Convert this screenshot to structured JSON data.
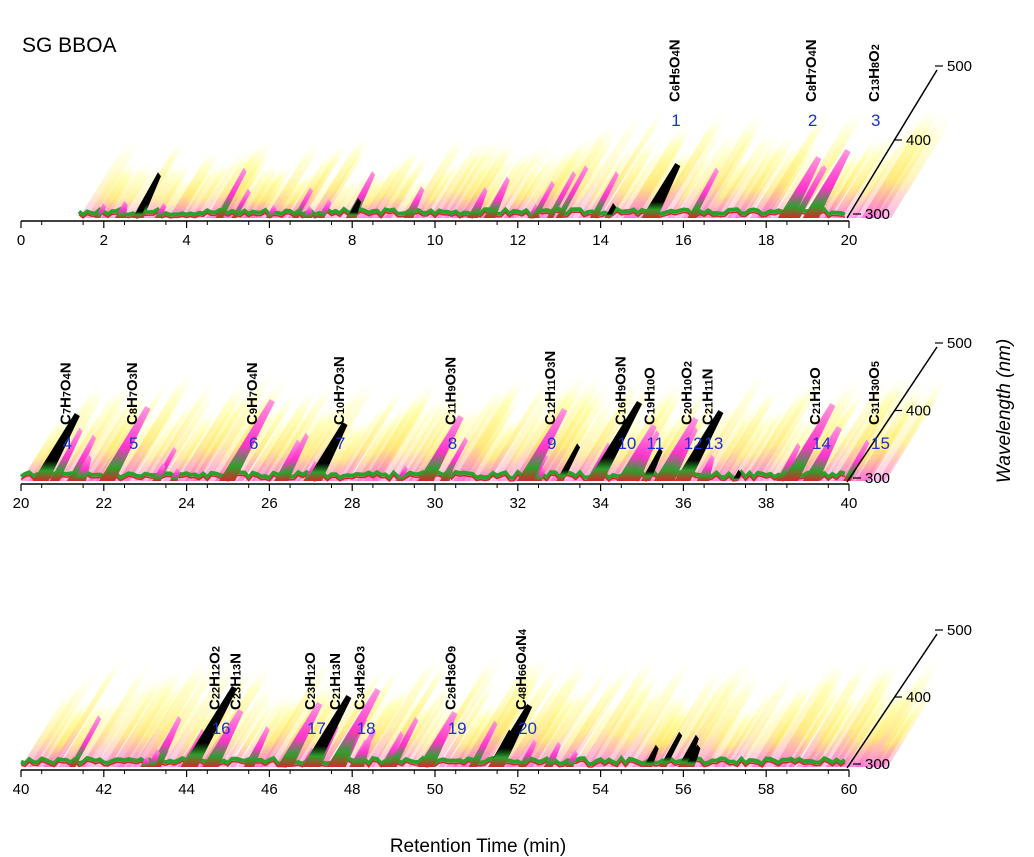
{
  "chart_data": {
    "type": "area",
    "title": "SG BBOA",
    "xlabel": "Retention Time (min)",
    "ylabel": "Wavelength (nm)",
    "colors": {
      "low": "#ffff33",
      "mid": "#ff33cc",
      "high": "#2ca02c",
      "higher": "#d62728",
      "max": "#000000",
      "peak_label": "#1a2fd6"
    },
    "panels": [
      {
        "xlim": [
          0,
          20
        ],
        "xticks": [
          "0",
          "2",
          "4",
          "6",
          "8",
          "10",
          "12",
          "14",
          "16",
          "18",
          "20"
        ],
        "ylim": [
          300,
          500
        ],
        "yticks": [
          "300",
          "400",
          "500"
        ],
        "peaks": [
          {
            "num": "1",
            "t": 15.9,
            "formula": "C6H5O4N",
            "parts": [
              [
                "C",
                ""
              ],
              [
                "6",
                "s"
              ],
              [
                "H",
                ""
              ],
              [
                "5",
                "s"
              ],
              [
                "O",
                ""
              ],
              [
                "4",
                "s"
              ],
              [
                "N",
                ""
              ]
            ]
          },
          {
            "num": "2",
            "t": 19.2,
            "formula": "C8H7O4N",
            "parts": [
              [
                "C",
                ""
              ],
              [
                "8",
                "s"
              ],
              [
                "H",
                ""
              ],
              [
                "7",
                "s"
              ],
              [
                "O",
                ""
              ],
              [
                "4",
                "s"
              ],
              [
                "N",
                ""
              ]
            ]
          },
          {
            "num": "3",
            "t": 20.6,
            "formula": "C13H8O2",
            "parts": [
              [
                "C",
                ""
              ],
              [
                "13",
                "s"
              ],
              [
                "H",
                ""
              ],
              [
                "8",
                "s"
              ],
              [
                "O",
                ""
              ],
              [
                "2",
                "s"
              ]
            ]
          }
        ]
      },
      {
        "xlim": [
          20,
          40
        ],
        "xticks": [
          "20",
          "22",
          "24",
          "26",
          "28",
          "30",
          "32",
          "34",
          "36",
          "38",
          "40"
        ],
        "ylim": [
          300,
          500
        ],
        "yticks": [
          "300",
          "400",
          "500"
        ],
        "peaks": [
          {
            "num": "4",
            "t": 21.2,
            "formula": "C7H7O4N",
            "parts": [
              [
                "C",
                ""
              ],
              [
                "7",
                "s"
              ],
              [
                "H",
                ""
              ],
              [
                "7",
                "s"
              ],
              [
                "O",
                ""
              ],
              [
                "4",
                "s"
              ],
              [
                "N",
                ""
              ]
            ]
          },
          {
            "num": "5",
            "t": 22.8,
            "formula": "C8H7O3N",
            "parts": [
              [
                "C",
                ""
              ],
              [
                "8",
                "s"
              ],
              [
                "H",
                ""
              ],
              [
                "7",
                "s"
              ],
              [
                "O",
                ""
              ],
              [
                "3",
                "s"
              ],
              [
                "N",
                ""
              ]
            ]
          },
          {
            "num": "6",
            "t": 25.7,
            "formula": "C9H7O4N",
            "parts": [
              [
                "C",
                ""
              ],
              [
                "9",
                "s"
              ],
              [
                "H",
                ""
              ],
              [
                "7",
                "s"
              ],
              [
                "O",
                ""
              ],
              [
                "4",
                "s"
              ],
              [
                "N",
                ""
              ]
            ]
          },
          {
            "num": "7",
            "t": 27.8,
            "formula": "C10H7O3N",
            "parts": [
              [
                "C",
                ""
              ],
              [
                "10",
                "s"
              ],
              [
                "H",
                ""
              ],
              [
                "7",
                "s"
              ],
              [
                "O",
                ""
              ],
              [
                "3",
                "s"
              ],
              [
                "N",
                ""
              ]
            ]
          },
          {
            "num": "8",
            "t": 30.5,
            "formula": "C11H9O3N",
            "parts": [
              [
                "C",
                ""
              ],
              [
                "11",
                "s"
              ],
              [
                "H",
                ""
              ],
              [
                "9",
                "s"
              ],
              [
                "O",
                ""
              ],
              [
                "3",
                "s"
              ],
              [
                "N",
                ""
              ]
            ]
          },
          {
            "num": "9",
            "t": 32.9,
            "formula": "C12H11O3N",
            "parts": [
              [
                "C",
                ""
              ],
              [
                "12",
                "s"
              ],
              [
                "H",
                ""
              ],
              [
                "11",
                "s"
              ],
              [
                "O",
                ""
              ],
              [
                "3",
                "s"
              ],
              [
                "N",
                ""
              ]
            ]
          },
          {
            "num": "10",
            "t": 34.6,
            "formula": "C16H9O3N",
            "parts": [
              [
                "C",
                ""
              ],
              [
                "16",
                "s"
              ],
              [
                "H",
                ""
              ],
              [
                "9",
                "s"
              ],
              [
                "O",
                ""
              ],
              [
                "3",
                "s"
              ],
              [
                "N",
                ""
              ]
            ]
          },
          {
            "num": "11",
            "t": 35.3,
            "formula": "C19H10O",
            "parts": [
              [
                "C",
                ""
              ],
              [
                "19",
                "s"
              ],
              [
                "H",
                ""
              ],
              [
                "10",
                "s"
              ],
              [
                "O",
                ""
              ]
            ]
          },
          {
            "num": "12",
            "t": 36.2,
            "formula": "C20H10O2",
            "parts": [
              [
                "C",
                ""
              ],
              [
                "20",
                "s"
              ],
              [
                "H",
                ""
              ],
              [
                "10",
                "s"
              ],
              [
                "O",
                ""
              ],
              [
                "2",
                "s"
              ]
            ]
          },
          {
            "num": "13",
            "t": 36.7,
            "formula": "C21H11N",
            "parts": [
              [
                "C",
                ""
              ],
              [
                "21",
                "s"
              ],
              [
                "H",
                ""
              ],
              [
                "11",
                "s"
              ],
              [
                "N",
                ""
              ]
            ]
          },
          {
            "num": "14",
            "t": 39.3,
            "formula": "C21H12O",
            "parts": [
              [
                "C",
                ""
              ],
              [
                "21",
                "s"
              ],
              [
                "H",
                ""
              ],
              [
                "12",
                "s"
              ],
              [
                "O",
                ""
              ]
            ]
          },
          {
            "num": "15",
            "t": 41.1,
            "formula": "C31H30O5",
            "parts": [
              [
                "C",
                ""
              ],
              [
                "31",
                "s"
              ],
              [
                "H",
                ""
              ],
              [
                "30",
                "s"
              ],
              [
                "O",
                ""
              ],
              [
                "5",
                "s"
              ]
            ]
          }
        ]
      },
      {
        "xlim": [
          40,
          60
        ],
        "xticks": [
          "40",
          "42",
          "44",
          "46",
          "48",
          "50",
          "52",
          "54",
          "56",
          "58",
          "60"
        ],
        "ylim": [
          300,
          500
        ],
        "yticks": [
          "300",
          "400",
          "500"
        ],
        "peaks": [
          {
            "num": "16",
            "t": 44.8,
            "formula": "C22H12O2",
            "parts": [
              [
                "C",
                ""
              ],
              [
                "22",
                "s"
              ],
              [
                "H",
                ""
              ],
              [
                "12",
                "s"
              ],
              [
                "O",
                ""
              ],
              [
                "2",
                "s"
              ]
            ]
          },
          {
            "num": "",
            "t": 45.3,
            "formula": "C23H13N",
            "parts": [
              [
                "C",
                ""
              ],
              [
                "23",
                "s"
              ],
              [
                "H",
                ""
              ],
              [
                "13",
                "s"
              ],
              [
                "N",
                ""
              ]
            ]
          },
          {
            "num": "17",
            "t": 47.1,
            "formula": "C23H12O",
            "parts": [
              [
                "C",
                ""
              ],
              [
                "23",
                "s"
              ],
              [
                "H",
                ""
              ],
              [
                "12",
                "s"
              ],
              [
                "O",
                ""
              ]
            ]
          },
          {
            "num": "",
            "t": 47.7,
            "formula": "C21H13N",
            "parts": [
              [
                "C",
                ""
              ],
              [
                "21",
                "s"
              ],
              [
                "H",
                ""
              ],
              [
                "13",
                "s"
              ],
              [
                "N",
                ""
              ]
            ]
          },
          {
            "num": "18",
            "t": 48.3,
            "formula": "C34H26O3",
            "parts": [
              [
                "C",
                ""
              ],
              [
                "34",
                "s"
              ],
              [
                "H",
                ""
              ],
              [
                "26",
                "s"
              ],
              [
                "O",
                ""
              ],
              [
                "3",
                "s"
              ]
            ]
          },
          {
            "num": "19",
            "t": 50.5,
            "formula": "C26H36O9",
            "parts": [
              [
                "C",
                ""
              ],
              [
                "26",
                "s"
              ],
              [
                "H",
                ""
              ],
              [
                "36",
                "s"
              ],
              [
                "O",
                ""
              ],
              [
                "9",
                "s"
              ]
            ]
          },
          {
            "num": "20",
            "t": 52.2,
            "formula": "C48H66O4N4",
            "parts": [
              [
                "C",
                ""
              ],
              [
                "48",
                "s"
              ],
              [
                "H",
                ""
              ],
              [
                "66",
                "s"
              ],
              [
                "O",
                ""
              ],
              [
                "4",
                "s"
              ],
              [
                "N",
                ""
              ],
              [
                "4",
                "s"
              ]
            ]
          }
        ]
      }
    ]
  }
}
